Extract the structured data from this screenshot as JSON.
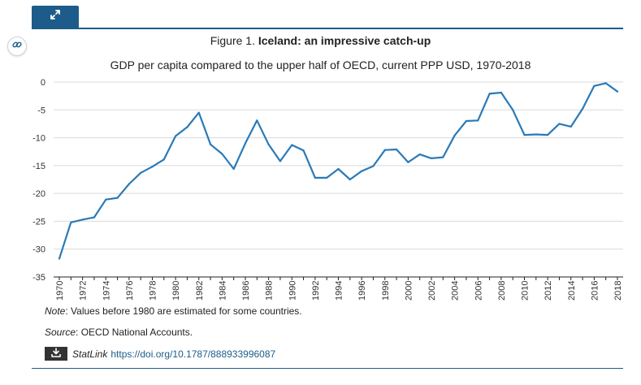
{
  "figure": {
    "label": "Figure 1.",
    "title": "Iceland: an impressive catch-up",
    "subtitle": "GDP per capita compared to the upper half of OECD, current PPP USD, 1970-2018"
  },
  "icons": {
    "expand": "expand-icon",
    "link": "link-icon",
    "download": "download-icon"
  },
  "colors": {
    "accent": "#1d5c8a",
    "line": "#2a7ab8",
    "grid": "#d9d9d9"
  },
  "notes": {
    "note_label": "Note",
    "note_text": ": Values before 1980 are estimated for some countries.",
    "source_label": "Source",
    "source_text": ": OECD National Accounts."
  },
  "statlink": {
    "label": "StatLink",
    "url": "https://doi.org/10.1787/888933996087"
  },
  "chart_data": {
    "type": "line",
    "title": "Iceland: an impressive catch-up",
    "subtitle": "GDP per capita compared to the upper half of OECD, current PPP USD, 1970-2018",
    "xlabel": "",
    "ylabel": "",
    "ylim": [
      -35,
      0
    ],
    "yticks": [
      0,
      -5,
      -10,
      -15,
      -20,
      -25,
      -30,
      -35
    ],
    "xticks": [
      1970,
      1972,
      1974,
      1976,
      1978,
      1980,
      1982,
      1984,
      1986,
      1988,
      1990,
      1992,
      1994,
      1996,
      1998,
      2000,
      2002,
      2004,
      2006,
      2008,
      2010,
      2012,
      2014,
      2016,
      2018
    ],
    "grid": true,
    "series": [
      {
        "name": "Iceland",
        "x": [
          1970,
          1971,
          1972,
          1973,
          1974,
          1975,
          1976,
          1977,
          1978,
          1979,
          1980,
          1981,
          1982,
          1983,
          1984,
          1985,
          1986,
          1987,
          1988,
          1989,
          1990,
          1991,
          1992,
          1993,
          1994,
          1995,
          1996,
          1997,
          1998,
          1999,
          2000,
          2001,
          2002,
          2003,
          2004,
          2005,
          2006,
          2007,
          2008,
          2009,
          2010,
          2011,
          2012,
          2013,
          2014,
          2015,
          2016,
          2017,
          2018
        ],
        "values": [
          -31.7,
          -25.2,
          -24.7,
          -24.3,
          -21.1,
          -20.8,
          -18.3,
          -16.3,
          -15.2,
          -13.9,
          -9.7,
          -8.1,
          -5.5,
          -11.2,
          -12.9,
          -15.6,
          -11.0,
          -6.9,
          -11.2,
          -14.2,
          -11.3,
          -12.3,
          -17.2,
          -17.2,
          -15.6,
          -17.5,
          -16.0,
          -15.1,
          -12.2,
          -12.1,
          -14.4,
          -13.0,
          -13.7,
          -13.5,
          -9.6,
          -7.0,
          -6.9,
          -2.1,
          -1.9,
          -5.0,
          -9.5,
          -9.4,
          -9.5,
          -7.5,
          -8.0,
          -4.8,
          -0.7,
          -0.2,
          -1.7
        ]
      }
    ]
  }
}
